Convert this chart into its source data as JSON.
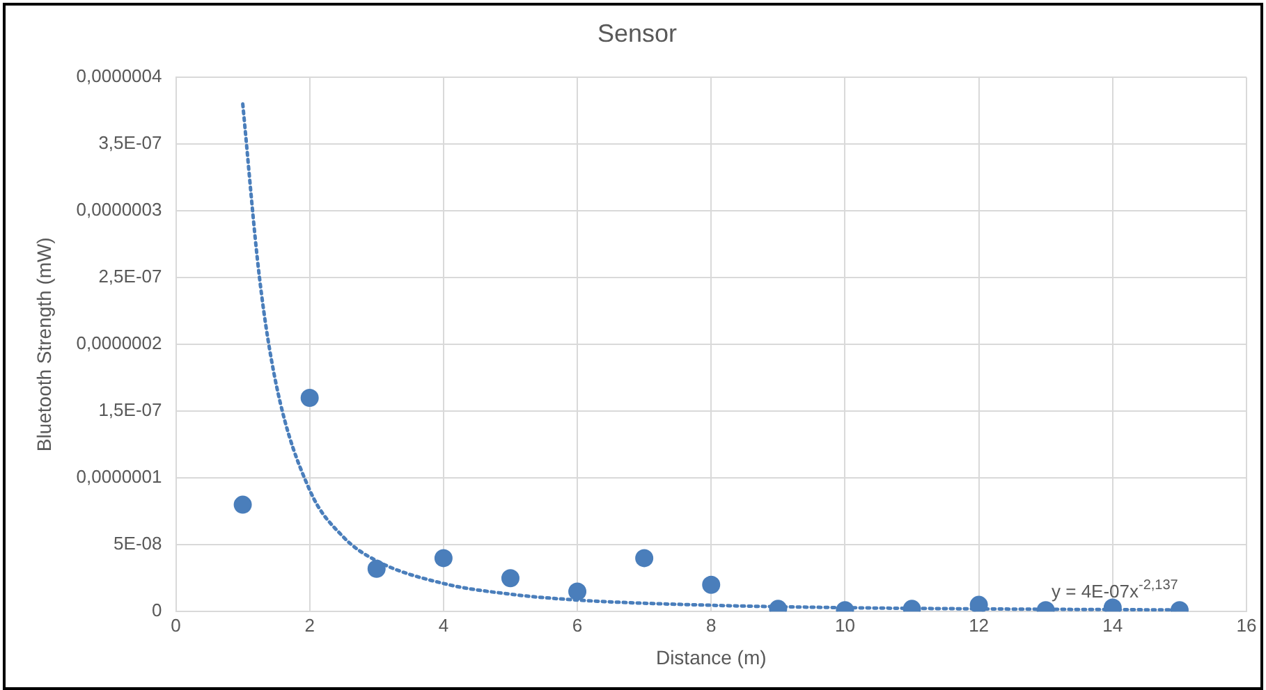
{
  "chart_data": {
    "type": "scatter",
    "title": "Sensor",
    "xlabel": "Distance (m)",
    "ylabel": "Bluetooth Strength (mW)",
    "xlim": [
      0,
      16
    ],
    "xticks": [
      0,
      2,
      4,
      6,
      8,
      10,
      12,
      14,
      16
    ],
    "ylim": [
      0,
      4e-07
    ],
    "yticks": [
      {
        "value": 0,
        "label": "0"
      },
      {
        "value": 5e-08,
        "label": "5E-08"
      },
      {
        "value": 1e-07,
        "label": "0,0000001"
      },
      {
        "value": 1.5e-07,
        "label": "1,5E-07"
      },
      {
        "value": 2e-07,
        "label": "0,0000002"
      },
      {
        "value": 2.5e-07,
        "label": "2,5E-07"
      },
      {
        "value": 3e-07,
        "label": "0,0000003"
      },
      {
        "value": 3.5e-07,
        "label": "3,5E-07"
      },
      {
        "value": 4e-07,
        "label": "0,0000004"
      }
    ],
    "grid": true,
    "legend": false,
    "marker": "circle",
    "series": [
      {
        "color": "#4a7ebb",
        "x": [
          1,
          2,
          3,
          4,
          5,
          6,
          7,
          8,
          9,
          10,
          11,
          12,
          13,
          14,
          15
        ],
        "values": [
          8e-08,
          1.6e-07,
          3.2e-08,
          4e-08,
          2.5e-08,
          1.5e-08,
          4e-08,
          2e-08,
          2e-09,
          1e-09,
          2e-09,
          5e-09,
          1e-09,
          3e-09,
          1e-09
        ]
      },
      {
        "type": "line",
        "color": "#4a7ebb",
        "line_style": "dotted",
        "marker": "none",
        "x": [
          1,
          1.25,
          1.5,
          2,
          2.5,
          3,
          4,
          5,
          6,
          8,
          10,
          12,
          15
        ],
        "values": [
          3.8e-07,
          2.5e-07,
          1.7e-07,
          9.1e-08,
          5.6e-08,
          3.8e-08,
          2.1e-08,
          1.3e-08,
          8.6e-09,
          4.7e-09,
          2.9e-09,
          2e-09,
          1.2e-09
        ]
      }
    ],
    "annotations": [
      "y = 4E-07x$^{-2,137}$"
    ]
  }
}
